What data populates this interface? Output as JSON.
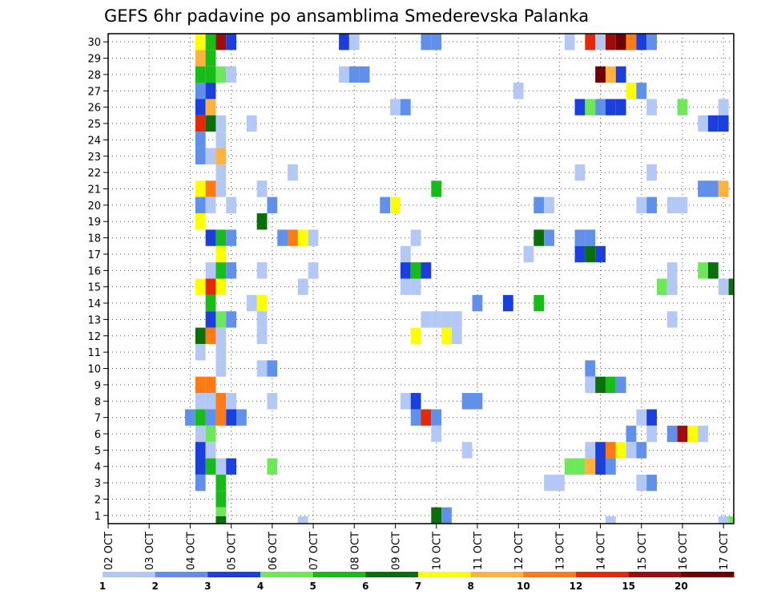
{
  "chart_data": {
    "type": "heatmap",
    "title": "GEFS 6hr padavine po ansamblima Smederevska Palanka",
    "xlabel": "",
    "ylabel": "",
    "y_ticks": [
      "1",
      "2",
      "3",
      "4",
      "5",
      "6",
      "7",
      "8",
      "9",
      "10",
      "11",
      "12",
      "13",
      "14",
      "15",
      "16",
      "17",
      "18",
      "19",
      "20",
      "21",
      "22",
      "23",
      "24",
      "25",
      "26",
      "27",
      "28",
      "29",
      "30"
    ],
    "x_ticks": [
      "02 OCT",
      "03 OCT",
      "04 OCT",
      "05 OCT",
      "06 OCT",
      "07 OCT",
      "08 OCT",
      "09 OCT",
      "10 OCT",
      "11 OCT",
      "12 OCT",
      "13 OCT",
      "14 OCT",
      "15 OCT",
      "16 OCT",
      "17 OCT"
    ],
    "x_range": [
      "02 OCT",
      "17 OCT"
    ],
    "y_range": [
      0,
      30
    ],
    "time_step_hours": 6,
    "grid": "dotted",
    "colorbar": {
      "labels": [
        "1",
        "2",
        "3",
        "4",
        "5",
        "6",
        "7",
        "8",
        "10",
        "12",
        "15",
        "20"
      ],
      "colors": [
        "#b4c8f5",
        "#6090ea",
        "#1a3fdc",
        "#6ee85a",
        "#18bc18",
        "#0a6e0a",
        "#ffff00",
        "#ffb23c",
        "#ff7a14",
        "#e4280a",
        "#a00c0c",
        "#700000"
      ]
    },
    "cells": [
      {
        "member": 30,
        "step": 9,
        "level": 7
      },
      {
        "member": 30,
        "step": 10,
        "level": 5
      },
      {
        "member": 30,
        "step": 11,
        "level": 11
      },
      {
        "member": 30,
        "step": 12,
        "level": 3
      },
      {
        "member": 30,
        "step": 23,
        "level": 3
      },
      {
        "member": 30,
        "step": 24,
        "level": 1
      },
      {
        "member": 30,
        "step": 31,
        "level": 2
      },
      {
        "member": 30,
        "step": 32,
        "level": 2
      },
      {
        "member": 30,
        "step": 45,
        "level": 1
      },
      {
        "member": 30,
        "step": 47,
        "level": 10
      },
      {
        "member": 30,
        "step": 48,
        "level": 1
      },
      {
        "member": 30,
        "step": 49,
        "level": 11
      },
      {
        "member": 30,
        "step": 50,
        "level": 12
      },
      {
        "member": 30,
        "step": 51,
        "level": 9
      },
      {
        "member": 30,
        "step": 52,
        "level": 3
      },
      {
        "member": 30,
        "step": 53,
        "level": 2
      },
      {
        "member": 29,
        "step": 9,
        "level": 8
      },
      {
        "member": 29,
        "step": 10,
        "level": 5
      },
      {
        "member": 28,
        "step": 9,
        "level": 5
      },
      {
        "member": 28,
        "step": 10,
        "level": 5
      },
      {
        "member": 28,
        "step": 11,
        "level": 4
      },
      {
        "member": 28,
        "step": 12,
        "level": 1
      },
      {
        "member": 28,
        "step": 23,
        "level": 1
      },
      {
        "member": 28,
        "step": 24,
        "level": 2
      },
      {
        "member": 28,
        "step": 25,
        "level": 2
      },
      {
        "member": 28,
        "step": 48,
        "level": 12
      },
      {
        "member": 28,
        "step": 49,
        "level": 8
      },
      {
        "member": 28,
        "step": 50,
        "level": 3
      },
      {
        "member": 27,
        "step": 9,
        "level": 2
      },
      {
        "member": 27,
        "step": 10,
        "level": 3
      },
      {
        "member": 27,
        "step": 40,
        "level": 1
      },
      {
        "member": 27,
        "step": 51,
        "level": 7
      },
      {
        "member": 27,
        "step": 52,
        "level": 2
      },
      {
        "member": 26,
        "step": 9,
        "level": 3
      },
      {
        "member": 26,
        "step": 10,
        "level": 8
      },
      {
        "member": 26,
        "step": 28,
        "level": 1
      },
      {
        "member": 26,
        "step": 29,
        "level": 2
      },
      {
        "member": 26,
        "step": 46,
        "level": 3
      },
      {
        "member": 26,
        "step": 47,
        "level": 4
      },
      {
        "member": 26,
        "step": 48,
        "level": 2
      },
      {
        "member": 26,
        "step": 49,
        "level": 3
      },
      {
        "member": 26,
        "step": 50,
        "level": 3
      },
      {
        "member": 26,
        "step": 53,
        "level": 1
      },
      {
        "member": 26,
        "step": 56,
        "level": 4
      },
      {
        "member": 26,
        "step": 60,
        "level": 1
      },
      {
        "member": 25,
        "step": 9,
        "level": 10
      },
      {
        "member": 25,
        "step": 10,
        "level": 6
      },
      {
        "member": 25,
        "step": 11,
        "level": 1
      },
      {
        "member": 25,
        "step": 14,
        "level": 1
      },
      {
        "member": 25,
        "step": 58,
        "level": 1
      },
      {
        "member": 25,
        "step": 59,
        "level": 3
      },
      {
        "member": 25,
        "step": 60,
        "level": 3
      },
      {
        "member": 24,
        "step": 9,
        "level": 2
      },
      {
        "member": 24,
        "step": 11,
        "level": 1
      },
      {
        "member": 23,
        "step": 9,
        "level": 2
      },
      {
        "member": 23,
        "step": 10,
        "level": 1
      },
      {
        "member": 23,
        "step": 11,
        "level": 8
      },
      {
        "member": 22,
        "step": 11,
        "level": 1
      },
      {
        "member": 22,
        "step": 18,
        "level": 1
      },
      {
        "member": 22,
        "step": 46,
        "level": 1
      },
      {
        "member": 22,
        "step": 53,
        "level": 1
      },
      {
        "member": 21,
        "step": 9,
        "level": 7
      },
      {
        "member": 21,
        "step": 10,
        "level": 9
      },
      {
        "member": 21,
        "step": 11,
        "level": 1
      },
      {
        "member": 21,
        "step": 15,
        "level": 1
      },
      {
        "member": 21,
        "step": 32,
        "level": 5
      },
      {
        "member": 21,
        "step": 58,
        "level": 2
      },
      {
        "member": 21,
        "step": 59,
        "level": 2
      },
      {
        "member": 21,
        "step": 60,
        "level": 8
      },
      {
        "member": 20,
        "step": 9,
        "level": 2
      },
      {
        "member": 20,
        "step": 10,
        "level": 1
      },
      {
        "member": 20,
        "step": 12,
        "level": 1
      },
      {
        "member": 20,
        "step": 16,
        "level": 2
      },
      {
        "member": 20,
        "step": 27,
        "level": 2
      },
      {
        "member": 20,
        "step": 28,
        "level": 7
      },
      {
        "member": 20,
        "step": 42,
        "level": 2
      },
      {
        "member": 20,
        "step": 43,
        "level": 1
      },
      {
        "member": 20,
        "step": 52,
        "level": 1
      },
      {
        "member": 20,
        "step": 53,
        "level": 2
      },
      {
        "member": 20,
        "step": 55,
        "level": 1
      },
      {
        "member": 20,
        "step": 56,
        "level": 1
      },
      {
        "member": 19,
        "step": 9,
        "level": 7
      },
      {
        "member": 19,
        "step": 15,
        "level": 6
      },
      {
        "member": 18,
        "step": 10,
        "level": 3
      },
      {
        "member": 18,
        "step": 11,
        "level": 5
      },
      {
        "member": 18,
        "step": 12,
        "level": 2
      },
      {
        "member": 18,
        "step": 17,
        "level": 2
      },
      {
        "member": 18,
        "step": 18,
        "level": 9
      },
      {
        "member": 18,
        "step": 19,
        "level": 7
      },
      {
        "member": 18,
        "step": 20,
        "level": 1
      },
      {
        "member": 18,
        "step": 30,
        "level": 1
      },
      {
        "member": 18,
        "step": 42,
        "level": 6
      },
      {
        "member": 18,
        "step": 43,
        "level": 2
      },
      {
        "member": 18,
        "step": 46,
        "level": 2
      },
      {
        "member": 18,
        "step": 47,
        "level": 2
      },
      {
        "member": 17,
        "step": 11,
        "level": 7
      },
      {
        "member": 17,
        "step": 29,
        "level": 1
      },
      {
        "member": 17,
        "step": 41,
        "level": 1
      },
      {
        "member": 17,
        "step": 46,
        "level": 3
      },
      {
        "member": 17,
        "step": 47,
        "level": 6
      },
      {
        "member": 17,
        "step": 48,
        "level": 3
      },
      {
        "member": 16,
        "step": 10,
        "level": 1
      },
      {
        "member": 16,
        "step": 11,
        "level": 5
      },
      {
        "member": 16,
        "step": 12,
        "level": 2
      },
      {
        "member": 16,
        "step": 15,
        "level": 1
      },
      {
        "member": 16,
        "step": 20,
        "level": 1
      },
      {
        "member": 16,
        "step": 29,
        "level": 3
      },
      {
        "member": 16,
        "step": 30,
        "level": 5
      },
      {
        "member": 16,
        "step": 31,
        "level": 3
      },
      {
        "member": 16,
        "step": 55,
        "level": 1
      },
      {
        "member": 16,
        "step": 58,
        "level": 4
      },
      {
        "member": 16,
        "step": 59,
        "level": 6
      },
      {
        "member": 15,
        "step": 9,
        "level": 7
      },
      {
        "member": 15,
        "step": 10,
        "level": 10
      },
      {
        "member": 15,
        "step": 11,
        "level": 7
      },
      {
        "member": 15,
        "step": 19,
        "level": 1
      },
      {
        "member": 15,
        "step": 29,
        "level": 1
      },
      {
        "member": 15,
        "step": 30,
        "level": 1
      },
      {
        "member": 15,
        "step": 54,
        "level": 4
      },
      {
        "member": 15,
        "step": 55,
        "level": 1
      },
      {
        "member": 15,
        "step": 60,
        "level": 1
      },
      {
        "member": 15,
        "step": 61,
        "level": 6
      },
      {
        "member": 14,
        "step": 10,
        "level": 5
      },
      {
        "member": 14,
        "step": 14,
        "level": 1
      },
      {
        "member": 14,
        "step": 15,
        "level": 7
      },
      {
        "member": 14,
        "step": 36,
        "level": 2
      },
      {
        "member": 14,
        "step": 39,
        "level": 3
      },
      {
        "member": 14,
        "step": 42,
        "level": 5
      },
      {
        "member": 13,
        "step": 10,
        "level": 3
      },
      {
        "member": 13,
        "step": 11,
        "level": 4
      },
      {
        "member": 13,
        "step": 12,
        "level": 2
      },
      {
        "member": 13,
        "step": 15,
        "level": 1
      },
      {
        "member": 13,
        "step": 31,
        "level": 1
      },
      {
        "member": 13,
        "step": 32,
        "level": 1
      },
      {
        "member": 13,
        "step": 33,
        "level": 1
      },
      {
        "member": 13,
        "step": 34,
        "level": 1
      },
      {
        "member": 13,
        "step": 55,
        "level": 1
      },
      {
        "member": 12,
        "step": 9,
        "level": 6
      },
      {
        "member": 12,
        "step": 10,
        "level": 9
      },
      {
        "member": 12,
        "step": 11,
        "level": 1
      },
      {
        "member": 12,
        "step": 15,
        "level": 1
      },
      {
        "member": 12,
        "step": 30,
        "level": 7
      },
      {
        "member": 12,
        "step": 33,
        "level": 7
      },
      {
        "member": 12,
        "step": 34,
        "level": 1
      },
      {
        "member": 11,
        "step": 9,
        "level": 1
      },
      {
        "member": 11,
        "step": 11,
        "level": 1
      },
      {
        "member": 10,
        "step": 11,
        "level": 1
      },
      {
        "member": 10,
        "step": 15,
        "level": 1
      },
      {
        "member": 10,
        "step": 16,
        "level": 2
      },
      {
        "member": 10,
        "step": 47,
        "level": 2
      },
      {
        "member": 9,
        "step": 9,
        "level": 9
      },
      {
        "member": 9,
        "step": 10,
        "level": 9
      },
      {
        "member": 9,
        "step": 47,
        "level": 1
      },
      {
        "member": 9,
        "step": 48,
        "level": 6
      },
      {
        "member": 9,
        "step": 49,
        "level": 5
      },
      {
        "member": 9,
        "step": 50,
        "level": 2
      },
      {
        "member": 8,
        "step": 9,
        "level": 1
      },
      {
        "member": 8,
        "step": 10,
        "level": 1
      },
      {
        "member": 8,
        "step": 11,
        "level": 9
      },
      {
        "member": 8,
        "step": 12,
        "level": 1
      },
      {
        "member": 8,
        "step": 16,
        "level": 1
      },
      {
        "member": 8,
        "step": 29,
        "level": 1
      },
      {
        "member": 8,
        "step": 30,
        "level": 3
      },
      {
        "member": 8,
        "step": 35,
        "level": 2
      },
      {
        "member": 8,
        "step": 36,
        "level": 2
      },
      {
        "member": 7,
        "step": 8,
        "level": 2
      },
      {
        "member": 7,
        "step": 9,
        "level": 5
      },
      {
        "member": 7,
        "step": 10,
        "level": 2
      },
      {
        "member": 7,
        "step": 11,
        "level": 9
      },
      {
        "member": 7,
        "step": 12,
        "level": 3
      },
      {
        "member": 7,
        "step": 13,
        "level": 2
      },
      {
        "member": 7,
        "step": 30,
        "level": 2
      },
      {
        "member": 7,
        "step": 31,
        "level": 10
      },
      {
        "member": 7,
        "step": 32,
        "level": 2
      },
      {
        "member": 7,
        "step": 52,
        "level": 1
      },
      {
        "member": 7,
        "step": 53,
        "level": 3
      },
      {
        "member": 6,
        "step": 9,
        "level": 1
      },
      {
        "member": 6,
        "step": 10,
        "level": 4
      },
      {
        "member": 6,
        "step": 32,
        "level": 1
      },
      {
        "member": 6,
        "step": 51,
        "level": 2
      },
      {
        "member": 6,
        "step": 53,
        "level": 1
      },
      {
        "member": 6,
        "step": 55,
        "level": 2
      },
      {
        "member": 6,
        "step": 56,
        "level": 11
      },
      {
        "member": 6,
        "step": 57,
        "level": 7
      },
      {
        "member": 6,
        "step": 58,
        "level": 1
      },
      {
        "member": 5,
        "step": 9,
        "level": 3
      },
      {
        "member": 5,
        "step": 10,
        "level": 1
      },
      {
        "member": 5,
        "step": 35,
        "level": 1
      },
      {
        "member": 5,
        "step": 47,
        "level": 1
      },
      {
        "member": 5,
        "step": 48,
        "level": 3
      },
      {
        "member": 5,
        "step": 49,
        "level": 9
      },
      {
        "member": 5,
        "step": 50,
        "level": 7
      },
      {
        "member": 5,
        "step": 51,
        "level": 1
      },
      {
        "member": 5,
        "step": 52,
        "level": 2
      },
      {
        "member": 4,
        "step": 9,
        "level": 3
      },
      {
        "member": 4,
        "step": 10,
        "level": 5
      },
      {
        "member": 4,
        "step": 11,
        "level": 1
      },
      {
        "member": 4,
        "step": 12,
        "level": 3
      },
      {
        "member": 4,
        "step": 16,
        "level": 4
      },
      {
        "member": 4,
        "step": 45,
        "level": 4
      },
      {
        "member": 4,
        "step": 46,
        "level": 4
      },
      {
        "member": 4,
        "step": 47,
        "level": 8
      },
      {
        "member": 4,
        "step": 48,
        "level": 3
      },
      {
        "member": 4,
        "step": 49,
        "level": 2
      },
      {
        "member": 3,
        "step": 9,
        "level": 2
      },
      {
        "member": 3,
        "step": 11,
        "level": 5
      },
      {
        "member": 3,
        "step": 43,
        "level": 1
      },
      {
        "member": 3,
        "step": 44,
        "level": 1
      },
      {
        "member": 3,
        "step": 52,
        "level": 1
      },
      {
        "member": 3,
        "step": 53,
        "level": 2
      },
      {
        "member": 2,
        "step": 11,
        "level": 5
      },
      {
        "member": 1,
        "step": 11,
        "level": 4
      },
      {
        "member": 1,
        "step": 32,
        "level": 6
      },
      {
        "member": 1,
        "step": 33,
        "level": 2
      },
      {
        "member": 0,
        "step": 11,
        "level": 6
      },
      {
        "member": 0,
        "step": 19,
        "level": 1
      },
      {
        "member": 0,
        "step": 49,
        "level": 1
      },
      {
        "member": 0,
        "step": 60,
        "level": 1
      },
      {
        "member": 0,
        "step": 61,
        "level": 4
      }
    ]
  }
}
